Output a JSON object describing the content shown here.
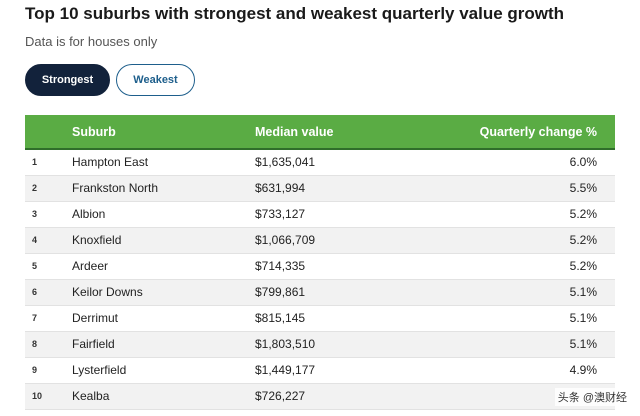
{
  "page": {
    "title": "Top 10 suburbs with strongest and weakest quarterly value growth",
    "subtitle": "Data is for houses only"
  },
  "toggle": {
    "strongest_label": "Strongest",
    "weakest_label": "Weakest",
    "selected": "Strongest"
  },
  "table": {
    "headers": {
      "rank": "",
      "suburb": "Suburb",
      "median_value": "Median value",
      "quarterly_change": "Quarterly change %"
    },
    "rows": [
      {
        "rank": "1",
        "suburb": "Hampton East",
        "median_value": "$1,635,041",
        "quarterly_change": "6.0%"
      },
      {
        "rank": "2",
        "suburb": "Frankston North",
        "median_value": "$631,994",
        "quarterly_change": "5.5%"
      },
      {
        "rank": "3",
        "suburb": "Albion",
        "median_value": "$733,127",
        "quarterly_change": "5.2%"
      },
      {
        "rank": "4",
        "suburb": "Knoxfield",
        "median_value": "$1,066,709",
        "quarterly_change": "5.2%"
      },
      {
        "rank": "5",
        "suburb": "Ardeer",
        "median_value": "$714,335",
        "quarterly_change": "5.2%"
      },
      {
        "rank": "6",
        "suburb": "Keilor Downs",
        "median_value": "$799,861",
        "quarterly_change": "5.1%"
      },
      {
        "rank": "7",
        "suburb": "Derrimut",
        "median_value": "$815,145",
        "quarterly_change": "5.1%"
      },
      {
        "rank": "8",
        "suburb": "Fairfield",
        "median_value": "$1,803,510",
        "quarterly_change": "5.1%"
      },
      {
        "rank": "9",
        "suburb": "Lysterfield",
        "median_value": "$1,449,177",
        "quarterly_change": "4.9%"
      },
      {
        "rank": "10",
        "suburb": "Kealba",
        "median_value": "$726,227",
        "quarterly_change": ""
      }
    ]
  },
  "watermark": "头条 @澳财经",
  "colors": {
    "header_green": "#5aac44",
    "active_button": "#12223b",
    "inactive_button_text": "#1e5f8c",
    "zebra_row": "#f2f2f2"
  }
}
